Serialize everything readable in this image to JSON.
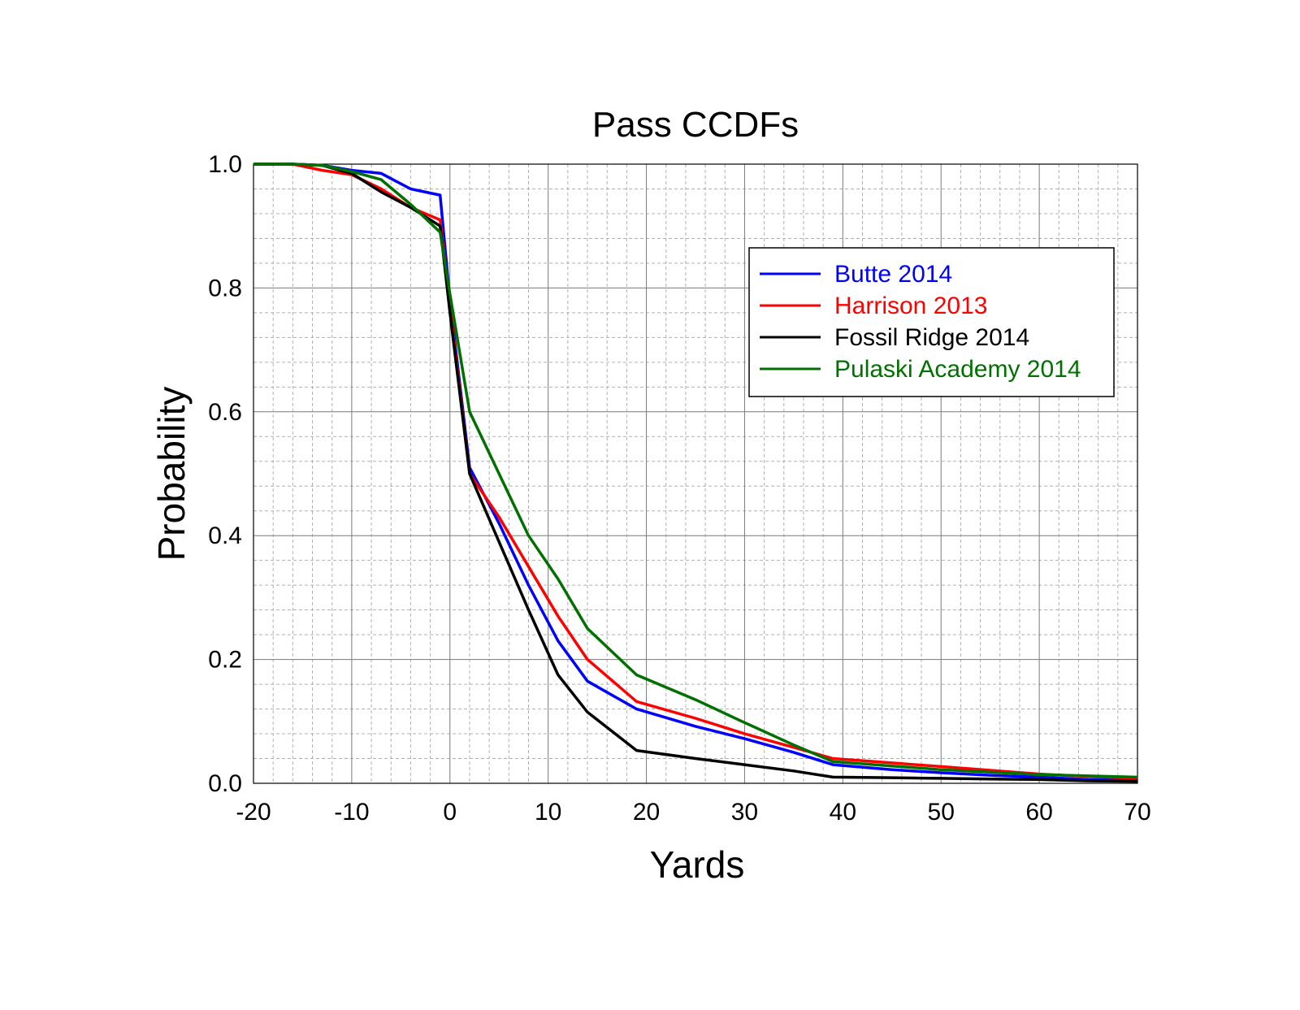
{
  "chart_data": {
    "type": "line",
    "title": "Pass CCDFs",
    "xlabel": "Yards",
    "ylabel": "Probability",
    "xlim": [
      -20,
      70
    ],
    "ylim": [
      0.0,
      1.0
    ],
    "x_ticks": [
      "-20",
      "-10",
      "0",
      "10",
      "20",
      "30",
      "40",
      "50",
      "60",
      "70"
    ],
    "y_ticks": [
      "0.0",
      "0.2",
      "0.4",
      "0.6",
      "0.8",
      "1.0"
    ],
    "grid": "major and minor",
    "legend_position": "upper-right",
    "series": [
      {
        "name": "Butte 2014",
        "color": "#0000ff",
        "x": [
          -20,
          -16,
          -13,
          -10,
          -7,
          -4,
          -1,
          0,
          2,
          5,
          8,
          11,
          14,
          19,
          25,
          30,
          35,
          39,
          45,
          50,
          55,
          60,
          65,
          70
        ],
        "y": [
          1.0,
          1.0,
          0.998,
          0.99,
          0.985,
          0.96,
          0.95,
          0.78,
          0.51,
          0.42,
          0.32,
          0.23,
          0.165,
          0.12,
          0.092,
          0.072,
          0.05,
          0.03,
          0.022,
          0.017,
          0.013,
          0.01,
          0.006,
          0.005
        ]
      },
      {
        "name": "Harrison 2013",
        "color": "#ff0000",
        "x": [
          -20,
          -16,
          -13,
          -10,
          -7,
          -4,
          -1,
          0,
          2,
          5,
          8,
          11,
          14,
          19,
          25,
          30,
          35,
          39,
          45,
          50,
          55,
          60,
          65,
          70
        ],
        "y": [
          1.0,
          1.0,
          0.99,
          0.983,
          0.96,
          0.93,
          0.91,
          0.77,
          0.5,
          0.43,
          0.35,
          0.27,
          0.2,
          0.132,
          0.105,
          0.08,
          0.058,
          0.04,
          0.033,
          0.027,
          0.021,
          0.015,
          0.011,
          0.008
        ]
      },
      {
        "name": "Fossil Ridge 2014",
        "color": "#000000",
        "x": [
          -20,
          -16,
          -13,
          -10,
          -7,
          -4,
          -1,
          0,
          2,
          5,
          8,
          11,
          14,
          19,
          25,
          30,
          35,
          39,
          45,
          50,
          55,
          60,
          65,
          70
        ],
        "y": [
          1.0,
          1.0,
          0.998,
          0.985,
          0.955,
          0.93,
          0.9,
          0.76,
          0.5,
          0.39,
          0.28,
          0.175,
          0.115,
          0.053,
          0.04,
          0.03,
          0.02,
          0.01,
          0.009,
          0.008,
          0.007,
          0.006,
          0.004,
          0.003
        ]
      },
      {
        "name": "Pulaski Academy 2014",
        "color": "#007000",
        "x": [
          -20,
          -16,
          -13,
          -10,
          -7,
          -4,
          -1,
          0,
          2,
          5,
          8,
          11,
          14,
          19,
          25,
          30,
          35,
          39,
          45,
          50,
          55,
          60,
          65,
          70
        ],
        "y": [
          1.0,
          1.0,
          0.998,
          0.988,
          0.975,
          0.935,
          0.89,
          0.79,
          0.6,
          0.5,
          0.4,
          0.33,
          0.25,
          0.175,
          0.135,
          0.098,
          0.062,
          0.035,
          0.028,
          0.022,
          0.018,
          0.014,
          0.012,
          0.01
        ]
      }
    ]
  }
}
